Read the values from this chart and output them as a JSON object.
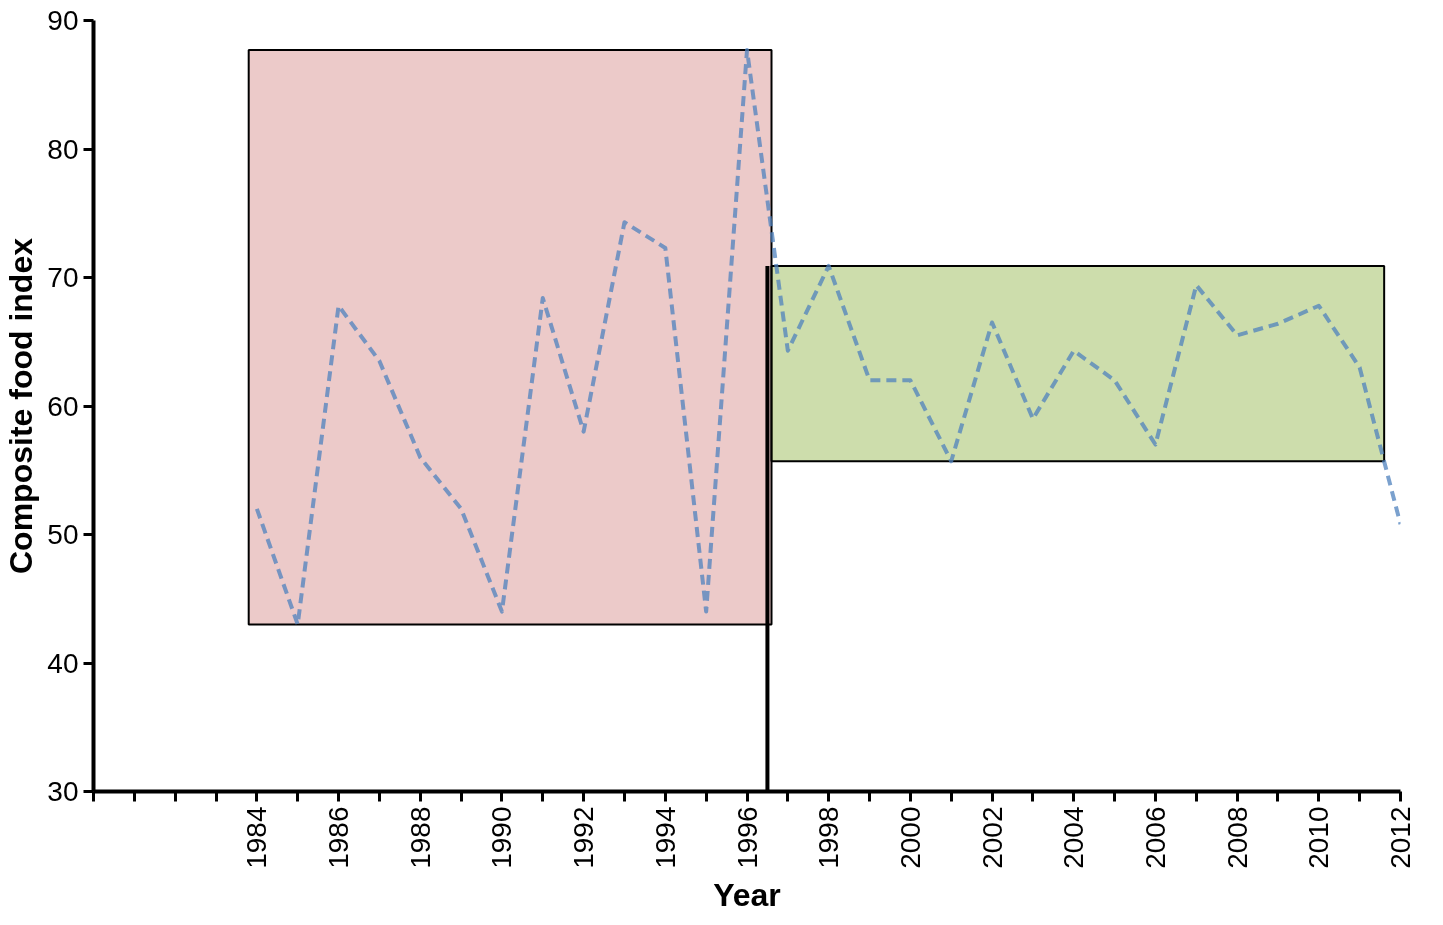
{
  "chart_data": {
    "type": "line",
    "xlabel": "Year",
    "ylabel": "Composite food index",
    "x": [
      1984,
      1985,
      1986,
      1987,
      1988,
      1989,
      1990,
      1991,
      1992,
      1993,
      1994,
      1995,
      1996,
      1997,
      1998,
      1999,
      2000,
      2001,
      2002,
      2003,
      2004,
      2005,
      2006,
      2007,
      2008,
      2009,
      2010,
      2011,
      2012
    ],
    "series": [
      {
        "color": "#4f81bd",
        "values": [
          52,
          43,
          67.8,
          63.5,
          56,
          52,
          44,
          68.4,
          58,
          74.3,
          72.3,
          44,
          87.7,
          64.3,
          70.9,
          62,
          62,
          55.7,
          66.5,
          59,
          64.3,
          62,
          57,
          69.4,
          65.5,
          66.4,
          67.8,
          63,
          50.8
        ]
      }
    ],
    "xlim": [
      1980,
      2012
    ],
    "ylim": [
      30,
      90
    ],
    "yticks": [
      30,
      40,
      50,
      60,
      70,
      80,
      90
    ],
    "xticks": [
      {
        "value": 1980,
        "label": null
      },
      {
        "value": 1981,
        "label": null
      },
      {
        "value": 1982,
        "label": null
      },
      {
        "value": 1983,
        "label": null
      },
      1984,
      {
        "value": 1985,
        "label": null
      },
      1986,
      {
        "value": 1987,
        "label": null
      },
      1988,
      {
        "value": 1989,
        "label": null
      },
      1990,
      {
        "value": 1991,
        "label": null
      },
      1992,
      {
        "value": 1993,
        "label": null
      },
      1994,
      {
        "value": 1995,
        "label": null
      },
      1996,
      {
        "value": 1997,
        "label": null
      },
      1998,
      {
        "value": 1999,
        "label": null
      },
      2000,
      {
        "value": 2001,
        "label": null
      },
      2002,
      {
        "value": 2003,
        "label": null
      },
      2004,
      {
        "value": 2005,
        "label": null
      },
      2006,
      {
        "value": 2007,
        "label": null
      },
      2008,
      {
        "value": 2009,
        "label": null
      },
      2010,
      {
        "value": 2011,
        "label": null
      },
      2012
    ],
    "bands": [
      {
        "axis": "x",
        "from": 1983.8,
        "to": 1996.6,
        "color": "#d99694"
      },
      {
        "axis": "x",
        "from": 1996.6,
        "to": 2011.6,
        "color": "#9bbb59"
      }
    ],
    "ref_lines": [
      {
        "axis": "x",
        "value": 1996.5,
        "color": "#000000"
      }
    ],
    "line_style": "dashed",
    "marker": "none",
    "grid": false
  }
}
